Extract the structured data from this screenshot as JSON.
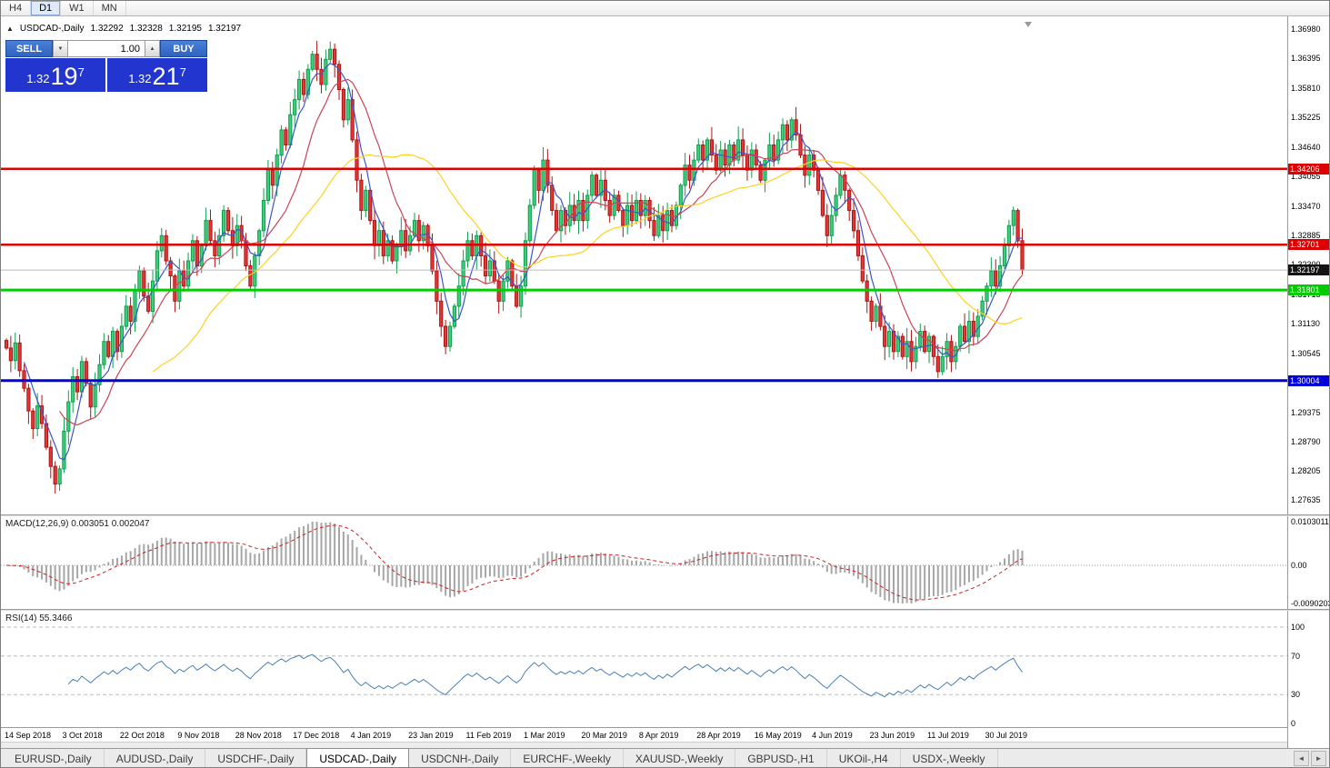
{
  "toolbar": {
    "timeframes": [
      "H4",
      "D1",
      "W1",
      "MN"
    ],
    "active": "D1"
  },
  "chart_header": {
    "direction_icon": "▲",
    "symbol": "USDCAD-,Daily",
    "open": "1.32292",
    "high": "1.32328",
    "low": "1.32195",
    "close": "1.32197"
  },
  "trade_panel": {
    "sell_label": "SELL",
    "buy_label": "BUY",
    "volume": "1.00",
    "decrease_glyph": "▼",
    "increase_glyph": "▲",
    "sell_price": {
      "prefix": "1.32",
      "big": "19",
      "sup": "7"
    },
    "buy_price": {
      "prefix": "1.32",
      "big": "21",
      "sup": "7"
    }
  },
  "indicators": {
    "macd_label": "MACD(12,26,9) 0.003051 0.002047",
    "rsi_label": "RSI(14) 55.3466"
  },
  "axis": {
    "price_ticks": [
      "1.36980",
      "1.36395",
      "1.35810",
      "1.35225",
      "1.34640",
      "1.34055",
      "1.33470",
      "1.32885",
      "1.32300",
      "1.31715",
      "1.31130",
      "1.30545",
      "1.29960",
      "1.29375",
      "1.28790",
      "1.28205",
      "1.27635"
    ],
    "macd_ticks": [
      {
        "label": "0.0103011",
        "value": 0.0103011
      },
      {
        "label": "0.00",
        "value": 0
      },
      {
        "label": "-0.0090203",
        "value": -0.0090203
      }
    ],
    "rsi_ticks": [
      {
        "label": "100",
        "value": 100
      },
      {
        "label": "70",
        "value": 70
      },
      {
        "label": "30",
        "value": 30
      },
      {
        "label": "0",
        "value": 0
      }
    ]
  },
  "dates": [
    {
      "label": "14 Sep 2018",
      "i": 0
    },
    {
      "label": "3 Oct 2018",
      "i": 13
    },
    {
      "label": "22 Oct 2018",
      "i": 26
    },
    {
      "label": "9 Nov 2018",
      "i": 39
    },
    {
      "label": "28 Nov 2018",
      "i": 52
    },
    {
      "label": "17 Dec 2018",
      "i": 65
    },
    {
      "label": "4 Jan 2019",
      "i": 78
    },
    {
      "label": "23 Jan 2019",
      "i": 91
    },
    {
      "label": "11 Feb 2019",
      "i": 104
    },
    {
      "label": "1 Mar 2019",
      "i": 117
    },
    {
      "label": "20 Mar 2019",
      "i": 130
    },
    {
      "label": "8 Apr 2019",
      "i": 143
    },
    {
      "label": "28 Apr 2019",
      "i": 156
    },
    {
      "label": "16 May 2019",
      "i": 169
    },
    {
      "label": "4 Jun 2019",
      "i": 182
    },
    {
      "label": "23 Jun 2019",
      "i": 195
    },
    {
      "label": "11 Jul 2019",
      "i": 208
    },
    {
      "label": "30 Jul 2019",
      "i": 221
    }
  ],
  "tabs": {
    "scroll_left_glyph": "◄",
    "scroll_right_glyph": "►",
    "items": [
      {
        "label": "EURUSD-,Daily",
        "active": false
      },
      {
        "label": "AUDUSD-,Daily",
        "active": false
      },
      {
        "label": "USDCHF-,Daily",
        "active": false
      },
      {
        "label": "USDCAD-,Daily",
        "active": true
      },
      {
        "label": "USDCNH-,Daily",
        "active": false
      },
      {
        "label": "EURCHF-,Weekly",
        "active": false
      },
      {
        "label": "XAUUSD-,Weekly",
        "active": false
      },
      {
        "label": "GBPUSD-,H1",
        "active": false
      },
      {
        "label": "UKOil-,H4",
        "active": false
      },
      {
        "label": "USDX-,Weekly",
        "active": false
      }
    ]
  },
  "chart_data": {
    "type": "candlestick",
    "symbol": "USDCAD",
    "timeframe": "Daily",
    "ylim": [
      1.27635,
      1.3698
    ],
    "first_open": 1.308,
    "current_price": 1.32197,
    "current_price_label": "1.32197",
    "closes": [
      1.3065,
      1.304,
      1.3075,
      1.302,
      1.2985,
      1.294,
      1.2905,
      1.295,
      1.2915,
      1.2868,
      1.283,
      1.2795,
      1.2825,
      1.29,
      1.2958,
      1.3008,
      1.2978,
      1.3038,
      1.2995,
      1.2948,
      1.2992,
      1.3032,
      1.3078,
      1.3048,
      1.3098,
      1.3058,
      1.3108,
      1.3148,
      1.3118,
      1.3178,
      1.3218,
      1.3168,
      1.3138,
      1.3198,
      1.3258,
      1.3288,
      1.3238,
      1.3208,
      1.3158,
      1.3218,
      1.3188,
      1.3238,
      1.3278,
      1.3228,
      1.3268,
      1.3318,
      1.3278,
      1.3248,
      1.3288,
      1.3338,
      1.3298,
      1.3268,
      1.3308,
      1.3278,
      1.3228,
      1.3188,
      1.3248,
      1.3298,
      1.3358,
      1.3418,
      1.3388,
      1.3448,
      1.3498,
      1.3468,
      1.3528,
      1.3558,
      1.3598,
      1.3568,
      1.3618,
      1.3648,
      1.3618,
      1.3588,
      1.3638,
      1.3658,
      1.3628,
      1.3578,
      1.3518,
      1.3558,
      1.3478,
      1.3398,
      1.3338,
      1.3378,
      1.3318,
      1.3268,
      1.3298,
      1.3248,
      1.3278,
      1.3238,
      1.3268,
      1.3298,
      1.3258,
      1.3288,
      1.3318,
      1.3278,
      1.3308,
      1.3268,
      1.3218,
      1.3158,
      1.3108,
      1.3068,
      1.3108,
      1.3148,
      1.3188,
      1.3238,
      1.3278,
      1.3248,
      1.3288,
      1.3248,
      1.3208,
      1.3238,
      1.3198,
      1.3158,
      1.3198,
      1.3238,
      1.3188,
      1.3148,
      1.3188,
      1.3278,
      1.3348,
      1.3418,
      1.3378,
      1.3438,
      1.3388,
      1.3338,
      1.3298,
      1.3338,
      1.3308,
      1.3348,
      1.3318,
      1.3358,
      1.3318,
      1.3368,
      1.3408,
      1.3368,
      1.3398,
      1.3358,
      1.3328,
      1.3368,
      1.3338,
      1.3308,
      1.3348,
      1.3318,
      1.3358,
      1.3328,
      1.3358,
      1.3318,
      1.3288,
      1.3328,
      1.3298,
      1.3338,
      1.3308,
      1.3348,
      1.3388,
      1.3428,
      1.3398,
      1.3438,
      1.3468,
      1.3438,
      1.3478,
      1.3448,
      1.3418,
      1.3458,
      1.3428,
      1.3468,
      1.3438,
      1.3478,
      1.3448,
      1.3418,
      1.3458,
      1.3428,
      1.3398,
      1.3438,
      1.3468,
      1.3438,
      1.3478,
      1.3508,
      1.3478,
      1.3518,
      1.3488,
      1.3448,
      1.3408,
      1.3448,
      1.3418,
      1.3378,
      1.3328,
      1.3288,
      1.3328,
      1.3368,
      1.3408,
      1.3378,
      1.3338,
      1.3298,
      1.3248,
      1.3198,
      1.3158,
      1.3118,
      1.3148,
      1.3108,
      1.3068,
      1.3098,
      1.3058,
      1.3088,
      1.3048,
      1.3078,
      1.3038,
      1.3068,
      1.3098,
      1.3058,
      1.3088,
      1.3048,
      1.3018,
      1.3048,
      1.3078,
      1.3038,
      1.3068,
      1.3108,
      1.3078,
      1.3118,
      1.3088,
      1.3128,
      1.3158,
      1.3188,
      1.3218,
      1.3188,
      1.3228,
      1.3268,
      1.3308,
      1.3338,
      1.3278,
      1.32197
    ],
    "colors": {
      "up_fill": "#3dcf7c",
      "up_stroke": "#0e9e4e",
      "down_fill": "#e23838",
      "down_stroke": "#b01212",
      "macd_hist": "#a6a6a6",
      "macd_signal": "#cc2222",
      "rsi_line": "#4a7fb5",
      "current_line": "#bcbcbc"
    },
    "ma": [
      {
        "period": 5,
        "color": "#3b55cc"
      },
      {
        "period": 13,
        "color": "#cc4455"
      },
      {
        "period": 34,
        "color": "#ffd21e"
      }
    ],
    "hlines": [
      {
        "price": 1.34206,
        "label": "1.34206",
        "color": "#dd0000",
        "width": 2.5
      },
      {
        "price": 1.32701,
        "label": "1.32701",
        "color": "#dd0000",
        "width": 2.5
      },
      {
        "price": 1.31801,
        "label": "1.31801",
        "color": "#00cc00",
        "width": 3
      },
      {
        "price": 1.30004,
        "label": "1.30004",
        "color": "#0000dd",
        "width": 3
      }
    ],
    "current_badge_color": "#141414",
    "macd": {
      "fast": 12,
      "slow": 26,
      "signal": 9
    },
    "macd_range": [
      -0.0090203,
      0.0103011
    ],
    "rsi": {
      "period": 14,
      "levels": [
        100,
        70,
        30
      ]
    }
  }
}
